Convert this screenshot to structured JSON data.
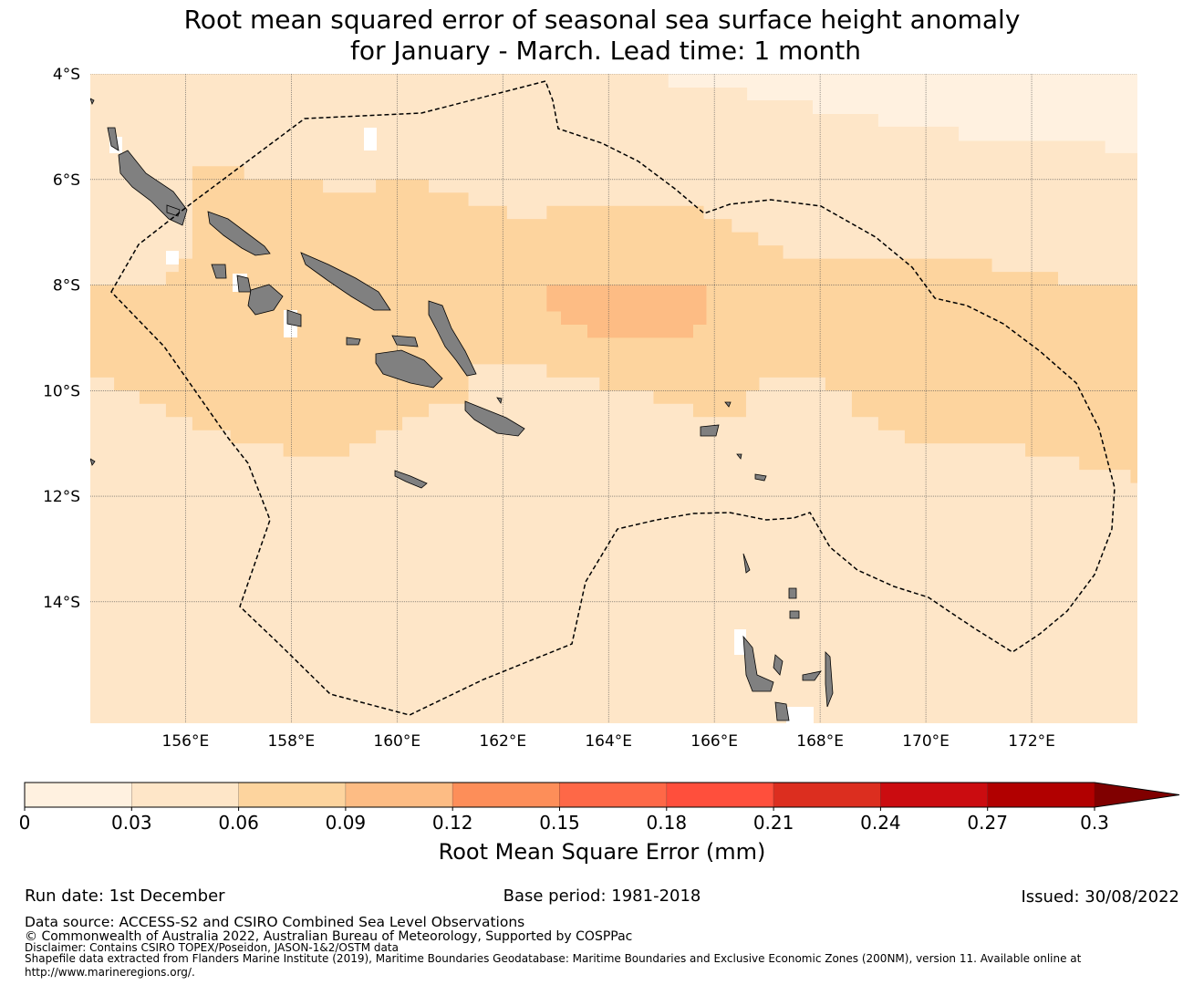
{
  "title": {
    "line1": "Root mean squared error of seasonal sea surface height anomaly",
    "line2": "for January - March. Lead time: 1 month"
  },
  "chart_data": {
    "type": "heatmap",
    "variable": "Root mean squared error of seasonal sea surface height anomaly",
    "lon_range": [
      154.2,
      174.0
    ],
    "lat_range": [
      -16.3,
      -4.0
    ],
    "lat_ticks": [
      "4°S",
      "6°S",
      "8°S",
      "10°S",
      "12°S",
      "14°S"
    ],
    "lat_tick_values": [
      -4,
      -6,
      -8,
      -10,
      -12,
      -14
    ],
    "lon_ticks": [
      "156°E",
      "158°E",
      "160°E",
      "162°E",
      "164°E",
      "166°E",
      "168°E",
      "170°E",
      "172°E"
    ],
    "lon_tick_values": [
      156,
      158,
      160,
      162,
      164,
      166,
      168,
      170,
      172
    ],
    "grid": true,
    "background_level": "0.03-0.06",
    "regions": [
      {
        "level": "0-0.03",
        "polygon_lonlat": [
          [
            165.13,
            -4
          ],
          [
            174.03,
            -4
          ],
          [
            174.03,
            -5.5
          ],
          [
            173.39,
            -5.5
          ],
          [
            173.39,
            -5.27
          ],
          [
            170.62,
            -5.27
          ],
          [
            170.62,
            -5.0
          ],
          [
            169.1,
            -5.0
          ],
          [
            169.1,
            -4.76
          ],
          [
            167.86,
            -4.76
          ],
          [
            167.86,
            -4.5
          ],
          [
            166.62,
            -4.5
          ],
          [
            166.62,
            -4.26
          ],
          [
            165.13,
            -4.26
          ]
        ]
      },
      {
        "level": "0.06-0.09",
        "polygon_lonlat": [
          [
            154.2,
            -8.0
          ],
          [
            155.63,
            -8.0
          ],
          [
            155.63,
            -7.75
          ],
          [
            155.87,
            -7.75
          ],
          [
            155.87,
            -7.5
          ],
          [
            156.13,
            -7.5
          ],
          [
            156.13,
            -5.75
          ],
          [
            157.11,
            -5.75
          ],
          [
            157.11,
            -6.0
          ],
          [
            158.6,
            -6.0
          ],
          [
            158.6,
            -6.25
          ],
          [
            159.6,
            -6.25
          ],
          [
            159.6,
            -6.0
          ],
          [
            160.6,
            -6.0
          ],
          [
            160.6,
            -6.25
          ],
          [
            161.35,
            -6.25
          ],
          [
            161.35,
            -6.5
          ],
          [
            162.08,
            -6.5
          ],
          [
            162.08,
            -6.75
          ],
          [
            162.83,
            -6.75
          ],
          [
            162.83,
            -6.5
          ],
          [
            165.8,
            -6.5
          ],
          [
            165.8,
            -6.75
          ],
          [
            166.33,
            -6.75
          ],
          [
            166.33,
            -7.0
          ],
          [
            166.83,
            -7.0
          ],
          [
            166.83,
            -7.25
          ],
          [
            167.3,
            -7.25
          ],
          [
            167.3,
            -7.5
          ],
          [
            169.6,
            -7.5
          ],
          [
            169.6,
            -7.5
          ],
          [
            171.25,
            -7.5
          ],
          [
            171.25,
            -7.75
          ],
          [
            172.5,
            -7.75
          ],
          [
            172.5,
            -8.0
          ],
          [
            174.03,
            -8.0
          ],
          [
            174.03,
            -8.5
          ],
          [
            174.03,
            -11.75
          ],
          [
            173.87,
            -11.75
          ],
          [
            173.87,
            -11.5
          ],
          [
            172.9,
            -11.5
          ],
          [
            172.9,
            -11.25
          ],
          [
            171.88,
            -11.25
          ],
          [
            171.88,
            -11.0
          ],
          [
            169.6,
            -11.0
          ],
          [
            169.6,
            -10.75
          ],
          [
            169.1,
            -10.75
          ],
          [
            169.1,
            -10.5
          ],
          [
            168.6,
            -10.5
          ],
          [
            168.6,
            -10.0
          ],
          [
            168.1,
            -10.0
          ],
          [
            168.1,
            -9.75
          ],
          [
            166.85,
            -9.75
          ],
          [
            166.85,
            -10.0
          ],
          [
            166.6,
            -10.0
          ],
          [
            166.6,
            -10.5
          ],
          [
            165.6,
            -10.5
          ],
          [
            165.6,
            -10.25
          ],
          [
            164.85,
            -10.25
          ],
          [
            164.85,
            -10.0
          ],
          [
            163.83,
            -10.0
          ],
          [
            163.83,
            -9.75
          ],
          [
            162.83,
            -9.75
          ],
          [
            162.83,
            -9.5
          ],
          [
            161.35,
            -9.5
          ],
          [
            161.35,
            -10.25
          ],
          [
            160.6,
            -10.25
          ],
          [
            160.6,
            -10.5
          ],
          [
            160.1,
            -10.5
          ],
          [
            160.1,
            -10.75
          ],
          [
            159.6,
            -10.75
          ],
          [
            159.6,
            -11.0
          ],
          [
            159.1,
            -11.0
          ],
          [
            159.1,
            -11.25
          ],
          [
            157.85,
            -11.25
          ],
          [
            157.85,
            -11.0
          ],
          [
            156.85,
            -11.0
          ],
          [
            156.85,
            -10.75
          ],
          [
            156.13,
            -10.75
          ],
          [
            156.13,
            -10.5
          ],
          [
            155.63,
            -10.5
          ],
          [
            155.63,
            -10.25
          ],
          [
            155.13,
            -10.25
          ],
          [
            155.13,
            -10.0
          ],
          [
            154.65,
            -10.0
          ],
          [
            154.65,
            -9.75
          ],
          [
            154.2,
            -9.75
          ]
        ]
      },
      {
        "level": "0.09-0.12",
        "polygon_lonlat": [
          [
            162.83,
            -8.0
          ],
          [
            165.85,
            -8.0
          ],
          [
            165.85,
            -8.75
          ],
          [
            165.6,
            -8.75
          ],
          [
            165.6,
            -9.0
          ],
          [
            163.6,
            -9.0
          ],
          [
            163.6,
            -8.75
          ],
          [
            163.1,
            -8.75
          ],
          [
            163.1,
            -8.5
          ],
          [
            162.83,
            -8.5
          ]
        ]
      }
    ],
    "colorbar": {
      "label": "Root Mean Square Error (mm)",
      "ticks": [
        "0",
        "0.03",
        "0.06",
        "0.09",
        "0.12",
        "0.15",
        "0.18",
        "0.21",
        "0.24",
        "0.27",
        "0.3"
      ],
      "levels": [
        "0-0.03",
        "0.03-0.06",
        "0.06-0.09",
        "0.09-0.12",
        "0.12-0.15",
        "0.15-0.18",
        "0.18-0.21",
        "0.21-0.24",
        "0.24-0.27",
        "0.27-0.3"
      ],
      "colors": [
        "#fff1e0",
        "#fee6c8",
        "#fdd49e",
        "#fdbc84",
        "#fd8e59",
        "#fe6847",
        "#ff4f3c",
        "#dc2e1f",
        "#cb0c10",
        "#b10000"
      ],
      "extend_color": "#800000",
      "extend": "max"
    },
    "land_color": "#808080",
    "boundary_style": "dashed"
  },
  "footer": {
    "run_date": "Run date: 1st December",
    "base_period": "Base period: 1981-2018",
    "issued": "Issued: 30/08/2022",
    "data_source": "Data source: ACCESS-S2 and CSIRO Combined Sea Level Observations",
    "copyright": "© Commonwealth of Australia 2022, Australian Bureau of Meteorology, Supported by COSPPac",
    "disclaimer": "Disclaimer: Contains CSIRO TOPEX/Poseidon, JASON-1&2/OSTM data",
    "shapefile": "Shapefile data extracted from Flanders Marine Institute (2019), Maritime Boundaries Geodatabase: Maritime Boundaries and Exclusive Economic Zones (200NM), version 11. Available online at",
    "url": "http://www.marineregions.org/."
  }
}
